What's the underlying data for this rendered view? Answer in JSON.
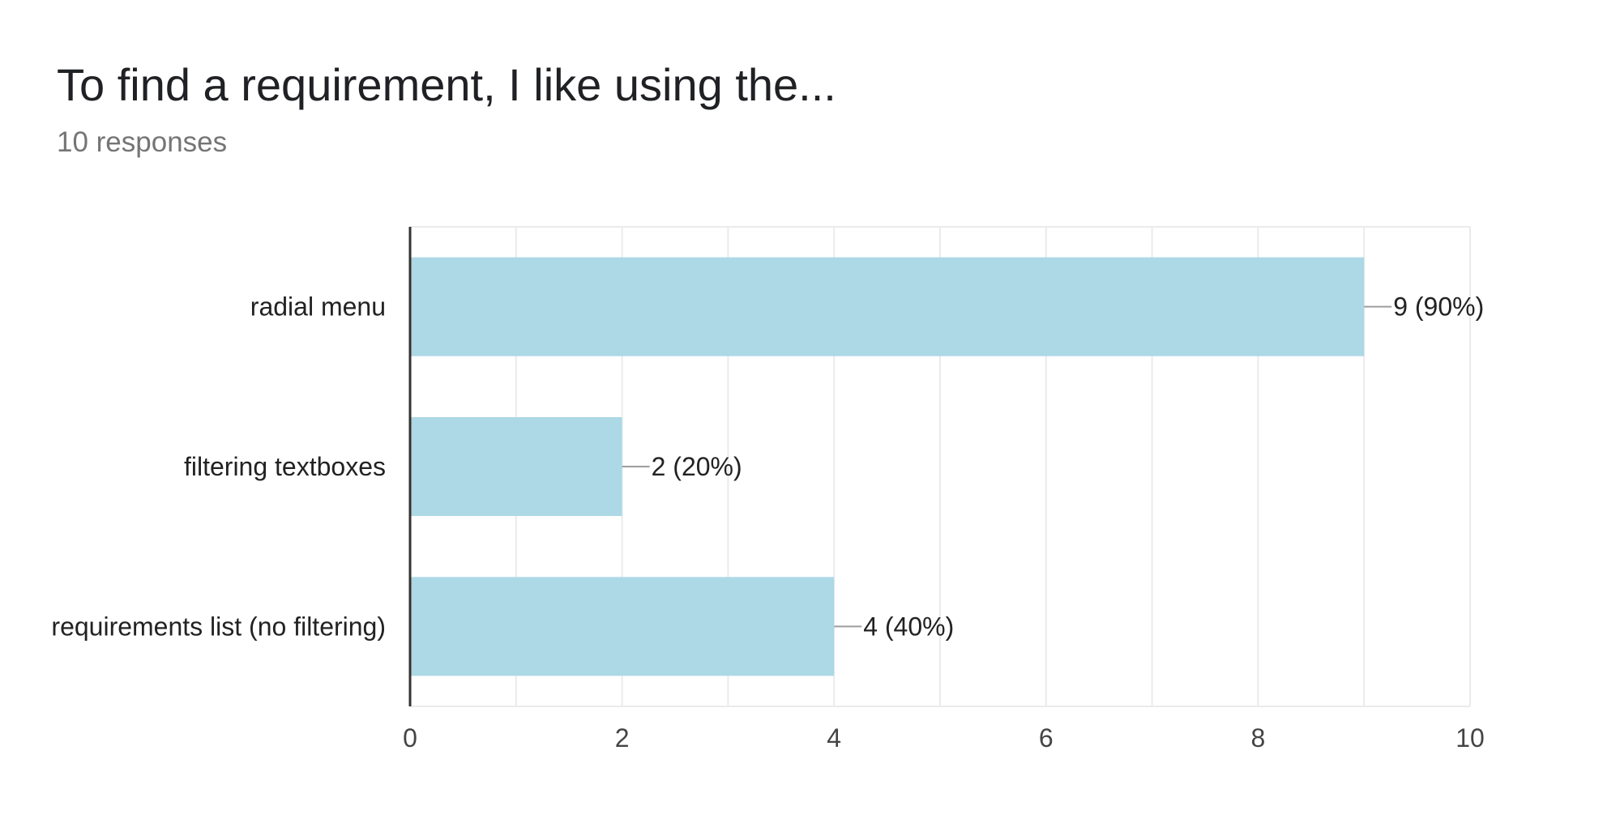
{
  "header": {
    "title": "To find a requirement, I like using the...",
    "subtitle": "10 responses"
  },
  "colors": {
    "bar": "#add8e6",
    "grid": "#ebebeb",
    "axis": "#333333",
    "leader": "#9e9e9e"
  },
  "chart_data": {
    "type": "bar",
    "orientation": "horizontal",
    "title": "To find a requirement, I like using the...",
    "subtitle": "10 responses",
    "categories": [
      "radial menu",
      "filtering textboxes",
      "requirements list (no filtering)"
    ],
    "values": [
      9,
      2,
      4
    ],
    "value_labels": [
      "9 (90%)",
      "2 (20%)",
      "4 (40%)"
    ],
    "xlim": [
      0,
      10
    ],
    "x_ticks": [
      0,
      2,
      4,
      6,
      8,
      10
    ],
    "x_tick_labels": [
      "0",
      "2",
      "4",
      "6",
      "8",
      "10"
    ],
    "grid": true,
    "legend": "none"
  }
}
